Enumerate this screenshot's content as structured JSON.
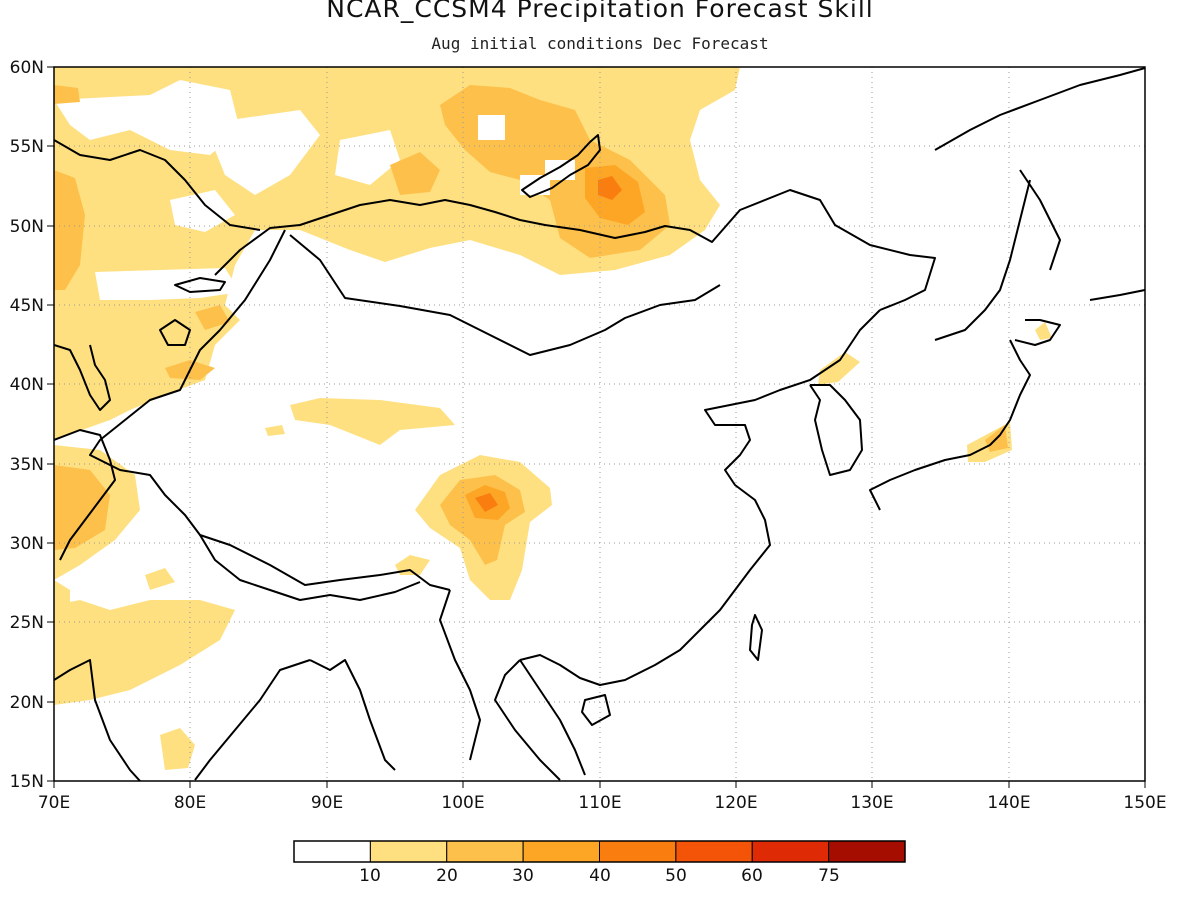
{
  "title": "NCAR_CCSM4 Precipitation Forecast Skill",
  "subtitle": "Aug initial conditions  Dec Forecast",
  "axes": {
    "x_labels": [
      "70E",
      "80E",
      "90E",
      "100E",
      "110E",
      "120E",
      "130E",
      "140E",
      "150E"
    ],
    "y_labels": [
      "60N",
      "55N",
      "50N",
      "45N",
      "40N",
      "35N",
      "30N",
      "25N",
      "20N",
      "15N"
    ]
  },
  "colorbar": {
    "labels": [
      "10",
      "20",
      "30",
      "40",
      "50",
      "60",
      "75"
    ],
    "colors": [
      "#ffffff",
      "#fee081",
      "#fdc04a",
      "#fda626",
      "#f97d0f",
      "#f35408",
      "#de2a05",
      "#a50d00"
    ]
  },
  "chart_data": {
    "type": "heatmap",
    "title": "NCAR_CCSM4 Precipitation Forecast Skill",
    "subtitle": "Aug initial conditions  Dec Forecast",
    "xlim": [
      70,
      150
    ],
    "ylim": [
      15,
      60
    ],
    "grid": true,
    "levels": [
      10,
      20,
      30,
      40,
      50,
      60,
      75
    ]
  }
}
